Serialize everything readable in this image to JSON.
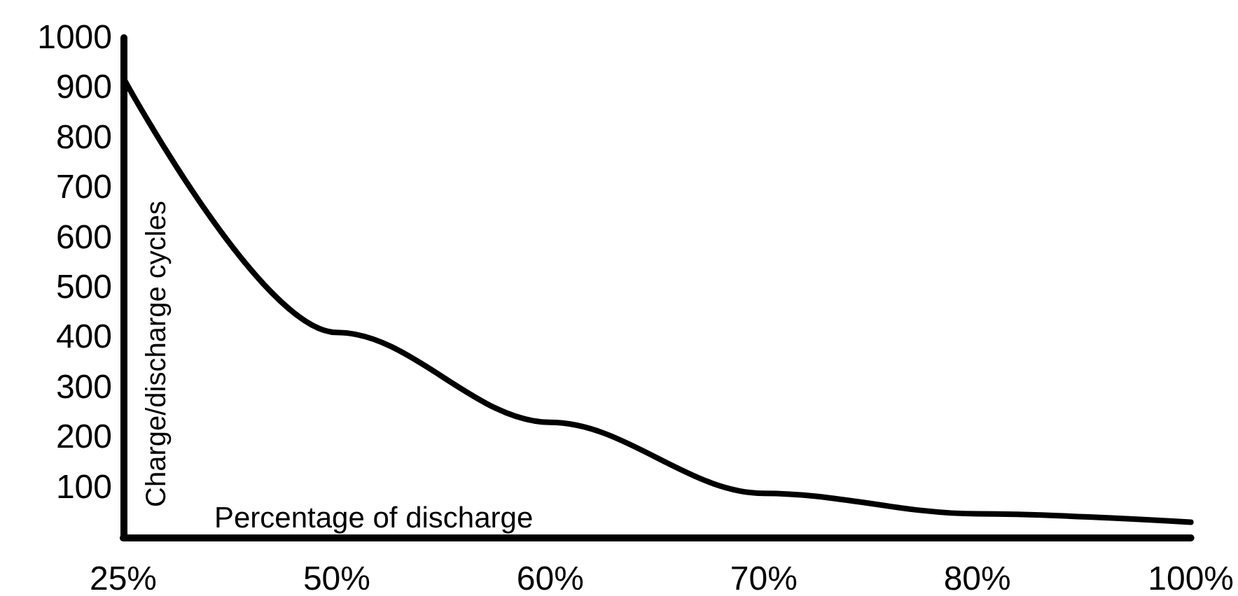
{
  "chart_data": {
    "type": "line",
    "xlabel": "Percentage of discharge",
    "ylabel": "Charge/discharge cycles",
    "categories": [
      "25%",
      "50%",
      "60%",
      "70%",
      "80%",
      "100%"
    ],
    "series": [
      {
        "color": "#000000",
        "values": [
          920,
          410,
          230,
          88,
          47,
          30
        ]
      }
    ],
    "ylim": [
      0,
      1000
    ],
    "yticks": [
      100,
      200,
      300,
      400,
      500,
      600,
      700,
      800,
      900,
      1000
    ],
    "grid": false,
    "marker": "none",
    "line_style": "solid"
  }
}
